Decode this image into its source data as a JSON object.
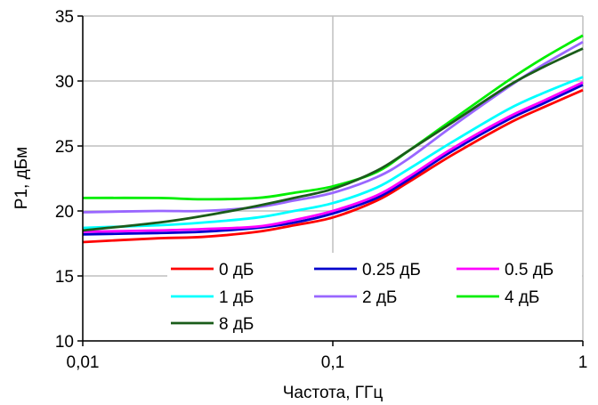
{
  "chart_data": {
    "type": "line",
    "title": "",
    "xlabel": "Частота, ГГц",
    "ylabel": "P1, дБм",
    "x_scale": "log",
    "xlim": [
      0.01,
      1
    ],
    "ylim": [
      10,
      35
    ],
    "x_ticks": [
      0.01,
      0.1,
      1
    ],
    "x_tick_labels": [
      "0,01",
      "0,1",
      "1"
    ],
    "y_ticks": [
      10,
      15,
      20,
      25,
      30,
      35
    ],
    "y_tick_labels": [
      "10",
      "15",
      "20",
      "25",
      "30",
      "35"
    ],
    "grid": true,
    "legend_position": "bottom-right",
    "x": [
      0.01,
      0.02,
      0.03,
      0.05,
      0.07,
      0.1,
      0.15,
      0.2,
      0.3,
      0.5,
      0.7,
      1
    ],
    "series": [
      {
        "name": "0 дБ",
        "color": "#ff0000",
        "values": [
          17.6,
          17.9,
          18.0,
          18.4,
          18.9,
          19.5,
          20.8,
          22.2,
          24.3,
          26.7,
          28.0,
          29.3
        ]
      },
      {
        "name": "0.25 дБ",
        "color": "#0000cc",
        "values": [
          18.2,
          18.3,
          18.4,
          18.7,
          19.1,
          19.8,
          21.0,
          22.4,
          24.6,
          27.0,
          28.3,
          29.7
        ]
      },
      {
        "name": "0.5 дБ",
        "color": "#ff00ff",
        "values": [
          18.4,
          18.5,
          18.6,
          18.8,
          19.3,
          20.0,
          21.2,
          22.6,
          24.8,
          27.2,
          28.5,
          29.9
        ]
      },
      {
        "name": "1 дБ",
        "color": "#00ffff",
        "values": [
          18.7,
          18.9,
          19.1,
          19.5,
          20.0,
          20.6,
          21.8,
          23.2,
          25.3,
          27.8,
          29.1,
          30.3
        ]
      },
      {
        "name": "2 дБ",
        "color": "#9966ff",
        "values": [
          19.9,
          20.0,
          20.0,
          20.3,
          20.8,
          21.4,
          22.6,
          24.0,
          26.5,
          29.5,
          31.3,
          33.0
        ]
      },
      {
        "name": "4 дБ",
        "color": "#00ee00",
        "values": [
          21.0,
          21.0,
          20.9,
          21.0,
          21.4,
          21.9,
          23.0,
          24.6,
          27.0,
          30.0,
          31.8,
          33.5
        ]
      },
      {
        "name": "8 дБ",
        "color": "#1a5c1a",
        "values": [
          18.5,
          19.1,
          19.6,
          20.4,
          21.0,
          21.7,
          23.1,
          24.6,
          26.8,
          29.6,
          31.1,
          32.5
        ]
      }
    ]
  }
}
